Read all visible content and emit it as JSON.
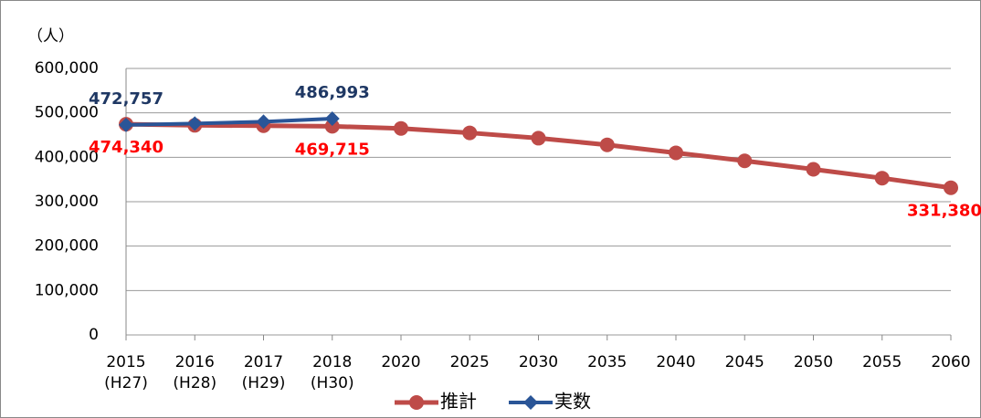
{
  "chart_data": {
    "type": "line",
    "y_label": "（人）",
    "categories": [
      "2015",
      "2016",
      "2017",
      "2018",
      "2020",
      "2025",
      "2030",
      "2035",
      "2040",
      "2045",
      "2050",
      "2055",
      "2060"
    ],
    "category_sublabels": [
      "(H27)",
      "(H28)",
      "(H29)",
      "(H30)",
      null,
      null,
      null,
      null,
      null,
      null,
      null,
      null,
      null
    ],
    "series": [
      {
        "name": "推計",
        "color": "#be4b48",
        "marker": "circle",
        "label_color": "#ff0000",
        "values": [
          474340,
          472000,
          471000,
          469715,
          465000,
          455000,
          443000,
          428000,
          410000,
          392000,
          373000,
          353000,
          331380
        ],
        "value_labels": [
          "474,340",
          null,
          null,
          "469,715",
          null,
          null,
          null,
          null,
          null,
          null,
          null,
          null,
          "331,380"
        ]
      },
      {
        "name": "実数",
        "color": "#2a5597",
        "marker": "diamond",
        "label_color": "#1f3864",
        "values": [
          472757,
          476000,
          480000,
          486993,
          null,
          null,
          null,
          null,
          null,
          null,
          null,
          null,
          null
        ],
        "value_labels": [
          "472,757",
          null,
          null,
          "486,993",
          null,
          null,
          null,
          null,
          null,
          null,
          null,
          null,
          null
        ]
      }
    ],
    "ylim": [
      0,
      600000
    ],
    "yticks": [
      0,
      {
        "value": 100000,
        "label": "100,000"
      },
      {
        "value": 200000,
        "label": "200,000"
      },
      {
        "value": 300000,
        "label": "300,000"
      },
      {
        "value": 400000,
        "label": "400,000"
      },
      {
        "value": 500000,
        "label": "500,000"
      },
      {
        "value": 600000,
        "label": "600,000"
      }
    ],
    "grid": true,
    "legend": "bottom"
  }
}
